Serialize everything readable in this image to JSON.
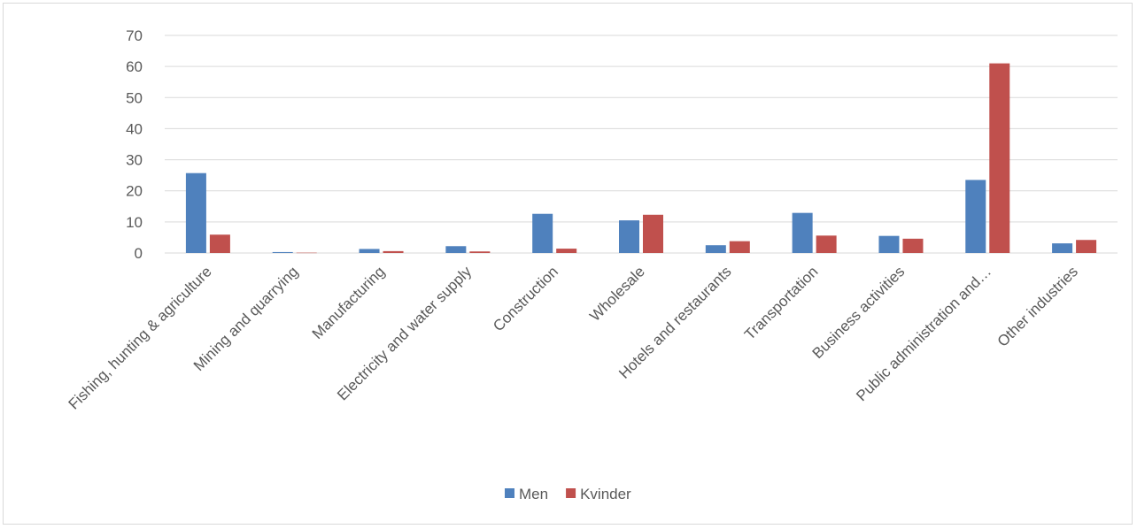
{
  "chart_data": {
    "type": "bar",
    "title": "",
    "xlabel": "",
    "ylabel": "",
    "ylim": [
      0,
      70
    ],
    "yticks": [
      0,
      10,
      20,
      30,
      40,
      50,
      60,
      70
    ],
    "grid": true,
    "legend_position": "bottom",
    "categories": [
      "Fishing, hunting & agriculture",
      "Mining and quarrying",
      "Manufacturing",
      "Electricity and water supply",
      "Construction",
      "Wholesale",
      "Hotels and restaurants",
      "Transportation",
      "Business activities",
      "Public administration and…",
      "Other industries"
    ],
    "series": [
      {
        "name": "Men",
        "color": "#4f81bd",
        "values": [
          25.7,
          0.3,
          1.3,
          2.2,
          12.6,
          10.5,
          2.5,
          12.9,
          5.5,
          23.5,
          3.1
        ]
      },
      {
        "name": "Kvinder",
        "color": "#c0504d",
        "values": [
          5.9,
          0.1,
          0.6,
          0.5,
          1.4,
          12.3,
          3.8,
          5.6,
          4.6,
          61.0,
          4.2
        ]
      }
    ]
  }
}
